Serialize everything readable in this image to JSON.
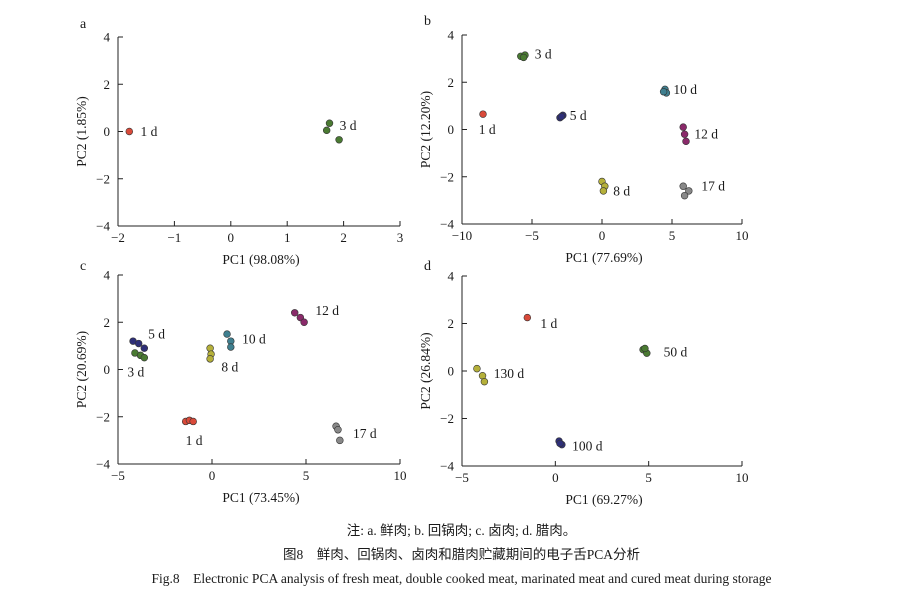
{
  "chart_data": [
    {
      "panel_label": "a",
      "type": "scatter",
      "xlabel": "PC1 (98.08%)",
      "ylabel": "PC2 (1.85%)",
      "xlim": [
        -2,
        3
      ],
      "ylim": [
        -4,
        4
      ],
      "xticks": [
        "−2",
        "−1",
        "0",
        "1",
        "2",
        "3"
      ],
      "yticks": [
        "4",
        "2",
        "0",
        "−2",
        "−4"
      ],
      "xtick_values": [
        -2,
        -1,
        0,
        1,
        2,
        3
      ],
      "ytick_values": [
        4,
        2,
        0,
        -2,
        -4
      ],
      "series": [
        {
          "name": "1 d",
          "color": "#d94a3a",
          "points": [
            [
              -1.8,
              0.0
            ]
          ],
          "label_at": [
            -1.6,
            0.0
          ]
        },
        {
          "name": "3 d",
          "color": "#4a7a32",
          "points": [
            [
              1.7,
              0.05
            ],
            [
              1.75,
              0.35
            ],
            [
              1.92,
              -0.35
            ]
          ],
          "label_at": [
            1.93,
            0.25
          ]
        }
      ]
    },
    {
      "panel_label": "b",
      "type": "scatter",
      "xlabel": "PC1 (77.69%)",
      "ylabel": "PC2 (12.20%)",
      "xlim": [
        -10,
        10
      ],
      "ylim": [
        -4,
        4
      ],
      "xticks": [
        "−10",
        "−5",
        "0",
        "5",
        "10"
      ],
      "yticks": [
        "4",
        "2",
        "0",
        "−2",
        "−4"
      ],
      "xtick_values": [
        -10,
        -5,
        0,
        5,
        10
      ],
      "ytick_values": [
        4,
        2,
        0,
        -2,
        -4
      ],
      "series": [
        {
          "name": "1 d",
          "color": "#d94a3a",
          "points": [
            [
              -8.5,
              0.65
            ]
          ],
          "label_at": [
            -8.8,
            0.0
          ]
        },
        {
          "name": "3 d",
          "color": "#4a7a32",
          "points": [
            [
              -5.8,
              3.1
            ],
            [
              -5.5,
              3.15
            ],
            [
              -5.6,
              3.05
            ]
          ],
          "label_at": [
            -4.8,
            3.2
          ]
        },
        {
          "name": "5 d",
          "color": "#2e2f78",
          "points": [
            [
              -3.0,
              0.5
            ],
            [
              -2.8,
              0.6
            ],
            [
              -2.9,
              0.55
            ]
          ],
          "label_at": [
            -2.3,
            0.6
          ]
        },
        {
          "name": "10 d",
          "color": "#3f7f8f",
          "points": [
            [
              4.5,
              1.7
            ],
            [
              4.6,
              1.55
            ],
            [
              4.4,
              1.6
            ]
          ],
          "label_at": [
            5.1,
            1.7
          ]
        },
        {
          "name": "12 d",
          "color": "#8a2a6a",
          "points": [
            [
              5.8,
              0.1
            ],
            [
              5.9,
              -0.2
            ],
            [
              6.0,
              -0.5
            ]
          ],
          "label_at": [
            6.6,
            -0.2
          ]
        },
        {
          "name": "8 d",
          "color": "#b5b03a",
          "points": [
            [
              0.0,
              -2.2
            ],
            [
              0.2,
              -2.4
            ],
            [
              0.1,
              -2.6
            ]
          ],
          "label_at": [
            0.8,
            -2.6
          ]
        },
        {
          "name": "17 d",
          "color": "#888888",
          "points": [
            [
              5.8,
              -2.4
            ],
            [
              6.2,
              -2.6
            ],
            [
              5.9,
              -2.8
            ]
          ],
          "label_at": [
            7.1,
            -2.4
          ]
        }
      ]
    },
    {
      "panel_label": "c",
      "type": "scatter",
      "xlabel": "PC1 (73.45%)",
      "ylabel": "PC2 (20.69%)",
      "xlim": [
        -5,
        10
      ],
      "ylim": [
        -4,
        4
      ],
      "xticks": [
        "−5",
        "0",
        "5",
        "10"
      ],
      "yticks": [
        "4",
        "2",
        "0",
        "−2",
        "−4"
      ],
      "xtick_values": [
        -5,
        0,
        5,
        10
      ],
      "ytick_values": [
        4,
        2,
        0,
        -2,
        -4
      ],
      "series": [
        {
          "name": "5 d",
          "color": "#2e2f78",
          "points": [
            [
              -4.2,
              1.2
            ],
            [
              -3.9,
              1.1
            ],
            [
              -3.6,
              0.9
            ]
          ],
          "label_at": [
            -3.4,
            1.5
          ]
        },
        {
          "name": "3 d",
          "color": "#4a7a32",
          "points": [
            [
              -4.1,
              0.7
            ],
            [
              -3.8,
              0.6
            ],
            [
              -3.6,
              0.5
            ]
          ],
          "label_at": [
            -4.5,
            -0.1
          ]
        },
        {
          "name": "8 d",
          "color": "#b5b03a",
          "points": [
            [
              -0.1,
              0.9
            ],
            [
              -0.05,
              0.65
            ],
            [
              -0.1,
              0.45
            ]
          ],
          "label_at": [
            0.5,
            0.1
          ]
        },
        {
          "name": "10 d",
          "color": "#3f7f8f",
          "points": [
            [
              0.8,
              1.5
            ],
            [
              1.0,
              1.2
            ],
            [
              1.0,
              0.95
            ]
          ],
          "label_at": [
            1.6,
            1.3
          ]
        },
        {
          "name": "12 d",
          "color": "#8a2a6a",
          "points": [
            [
              4.4,
              2.4
            ],
            [
              4.7,
              2.2
            ],
            [
              4.9,
              2.0
            ]
          ],
          "label_at": [
            5.5,
            2.5
          ]
        },
        {
          "name": "1 d",
          "color": "#d94a3a",
          "points": [
            [
              -1.4,
              -2.2
            ],
            [
              -1.2,
              -2.15
            ],
            [
              -1.0,
              -2.2
            ]
          ],
          "label_at": [
            -1.4,
            -3.0
          ]
        },
        {
          "name": "17 d",
          "color": "#888888",
          "points": [
            [
              6.6,
              -2.4
            ],
            [
              6.7,
              -2.55
            ],
            [
              6.8,
              -3.0
            ]
          ],
          "label_at": [
            7.5,
            -2.7
          ]
        }
      ]
    },
    {
      "panel_label": "d",
      "type": "scatter",
      "xlabel": "PC1 (69.27%)",
      "ylabel": "PC2 (26.84%)",
      "xlim": [
        -5,
        10
      ],
      "ylim": [
        -4,
        4
      ],
      "xticks": [
        "−5",
        "0",
        "5",
        "10"
      ],
      "yticks": [
        "4",
        "2",
        "0",
        "−2",
        "−4"
      ],
      "xtick_values": [
        -5,
        0,
        5,
        10
      ],
      "ytick_values": [
        4,
        2,
        0,
        -2,
        -4
      ],
      "series": [
        {
          "name": "1 d",
          "color": "#d94a3a",
          "points": [
            [
              -1.5,
              2.25
            ]
          ],
          "label_at": [
            -0.8,
            2.0
          ]
        },
        {
          "name": "50 d",
          "color": "#4a7a32",
          "points": [
            [
              4.7,
              0.9
            ],
            [
              4.9,
              0.75
            ],
            [
              4.8,
              0.95
            ]
          ],
          "label_at": [
            5.8,
            0.8
          ]
        },
        {
          "name": "130 d",
          "color": "#b5b03a",
          "points": [
            [
              -4.2,
              0.1
            ],
            [
              -3.9,
              -0.2
            ],
            [
              -3.8,
              -0.45
            ]
          ],
          "label_at": [
            -3.3,
            -0.1
          ]
        },
        {
          "name": "100 d",
          "color": "#2e2f78",
          "points": [
            [
              0.2,
              -2.95
            ],
            [
              0.35,
              -3.1
            ],
            [
              0.25,
              -3.05
            ]
          ],
          "label_at": [
            0.9,
            -3.15
          ]
        }
      ]
    }
  ],
  "captions": {
    "note": "注: a. 鲜肉; b. 回锅肉; c. 卤肉; d. 腊肉。",
    "cn": "图8　鲜肉、回锅肉、卤肉和腊肉贮藏期间的电子舌PCA分析",
    "en": "Fig.8　Electronic PCA analysis of fresh meat, double cooked meat, marinated meat and cured meat during storage"
  }
}
